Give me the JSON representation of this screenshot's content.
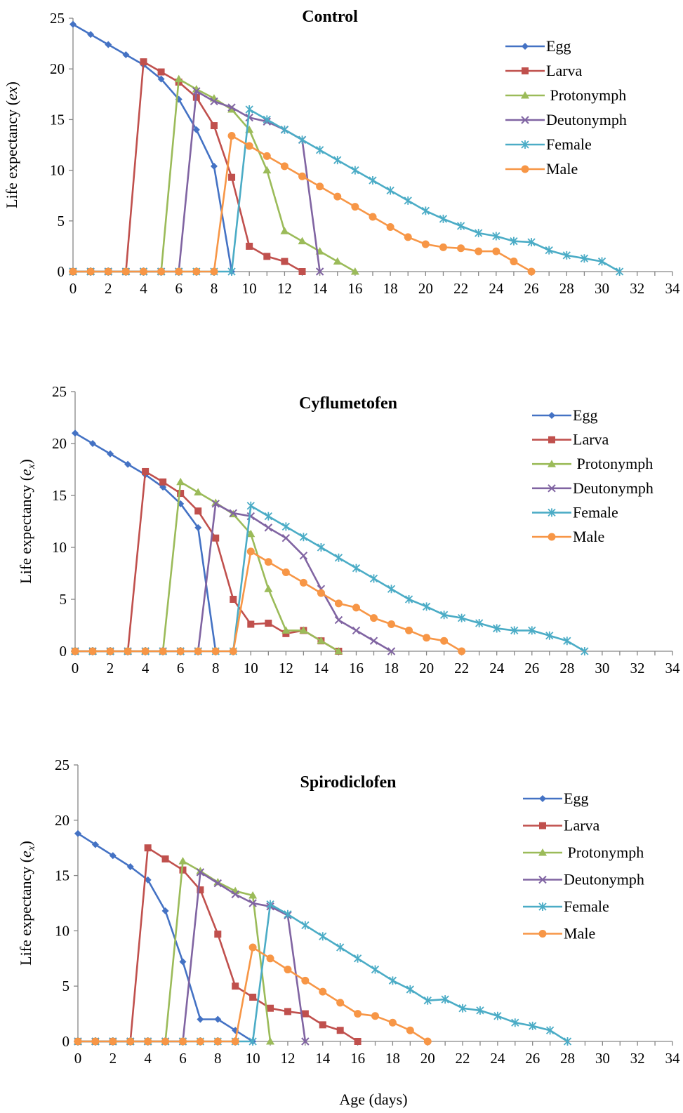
{
  "figure": {
    "xlabel": "Age (days)"
  },
  "chart_data": [
    {
      "type": "line",
      "title": "Control",
      "ylabel_main": "Life expectancy (",
      "ylabel_var": "ex",
      "ylabel_sub": "",
      "ylabel_end": ")",
      "xlim": [
        0,
        34
      ],
      "ylim": [
        0,
        25
      ],
      "xticks": [
        "0",
        "2",
        "4",
        "6",
        "8",
        "10",
        "12",
        "14",
        "16",
        "18",
        "20",
        "22",
        "24",
        "26",
        "28",
        "30",
        "32",
        "34"
      ],
      "yticks": [
        "0",
        "5",
        "10",
        "15",
        "20",
        "25"
      ],
      "series": [
        {
          "name": "Egg",
          "color": "#4472C4",
          "marker": "diamond",
          "x": [
            0,
            1,
            2,
            3,
            4,
            5,
            6,
            7,
            8,
            9
          ],
          "y": [
            24.4,
            23.4,
            22.4,
            21.4,
            20.4,
            19.0,
            17.0,
            14.0,
            10.4,
            0
          ]
        },
        {
          "name": "Larva",
          "color": "#C0504D",
          "marker": "square",
          "x": [
            0,
            1,
            2,
            3,
            4,
            5,
            6,
            7,
            8,
            9,
            10,
            11,
            12,
            13
          ],
          "y": [
            0,
            0,
            0,
            0,
            20.7,
            19.7,
            18.7,
            17.2,
            14.4,
            9.3,
            2.5,
            1.5,
            1.0,
            0
          ]
        },
        {
          "name": "Protonymph",
          "color": "#9BBB59",
          "marker": "triangle",
          "x": [
            0,
            1,
            2,
            3,
            4,
            5,
            6,
            7,
            8,
            9,
            10,
            11,
            12,
            13,
            14,
            15,
            16
          ],
          "y": [
            0,
            0,
            0,
            0,
            0,
            0,
            19.0,
            18.0,
            17.1,
            16.0,
            14.0,
            10.0,
            4.0,
            3.0,
            2.0,
            1.0,
            0
          ]
        },
        {
          "name": "Deutonymph",
          "color": "#8064A2",
          "marker": "x",
          "x": [
            0,
            1,
            2,
            3,
            4,
            5,
            6,
            7,
            8,
            9,
            10,
            11,
            12,
            13,
            14
          ],
          "y": [
            0,
            0,
            0,
            0,
            0,
            0,
            0,
            17.8,
            16.8,
            16.2,
            15.2,
            14.8,
            14.0,
            13.0,
            0
          ]
        },
        {
          "name": "Female",
          "color": "#4BACC6",
          "marker": "star",
          "x": [
            0,
            1,
            2,
            3,
            4,
            5,
            6,
            7,
            8,
            9,
            10,
            11,
            12,
            13,
            14,
            15,
            16,
            17,
            18,
            19,
            20,
            21,
            22,
            23,
            24,
            25,
            26,
            27,
            28,
            29,
            30,
            31
          ],
          "y": [
            0,
            0,
            0,
            0,
            0,
            0,
            0,
            0,
            0,
            0,
            16.0,
            15.0,
            14.0,
            13.0,
            12.0,
            11.0,
            10.0,
            9.0,
            8.0,
            7.0,
            6.0,
            5.2,
            4.5,
            3.8,
            3.5,
            3.0,
            2.9,
            2.1,
            1.6,
            1.3,
            1.0,
            0
          ]
        },
        {
          "name": "Male",
          "color": "#F79646",
          "marker": "circle",
          "x": [
            0,
            1,
            2,
            3,
            4,
            5,
            6,
            7,
            8,
            9,
            10,
            11,
            12,
            13,
            14,
            15,
            16,
            17,
            18,
            19,
            20,
            21,
            22,
            23,
            24,
            25,
            26
          ],
          "y": [
            0,
            0,
            0,
            0,
            0,
            0,
            0,
            0,
            0,
            13.4,
            12.4,
            11.4,
            10.4,
            9.4,
            8.4,
            7.4,
            6.4,
            5.4,
            4.4,
            3.4,
            2.7,
            2.4,
            2.3,
            2.0,
            2.0,
            1.0,
            0
          ]
        }
      ]
    },
    {
      "type": "line",
      "title": "Cyflumetofen",
      "ylabel_main": "Life expectancy (",
      "ylabel_var": "e",
      "ylabel_sub": "x",
      "ylabel_end": ")",
      "xlim": [
        0,
        34
      ],
      "ylim": [
        0,
        25
      ],
      "xticks": [
        "0",
        "2",
        "4",
        "6",
        "8",
        "10",
        "12",
        "14",
        "16",
        "18",
        "20",
        "22",
        "24",
        "26",
        "28",
        "30",
        "32",
        "34"
      ],
      "yticks": [
        "0",
        "5",
        "10",
        "15",
        "20",
        "25"
      ],
      "series": [
        {
          "name": "Egg",
          "color": "#4472C4",
          "marker": "diamond",
          "x": [
            0,
            1,
            2,
            3,
            4,
            5,
            6,
            7,
            8
          ],
          "y": [
            21.0,
            20.0,
            19.0,
            18.0,
            17.0,
            15.8,
            14.2,
            11.9,
            0
          ]
        },
        {
          "name": "Larva",
          "color": "#C0504D",
          "marker": "square",
          "x": [
            0,
            1,
            2,
            3,
            4,
            5,
            6,
            7,
            8,
            9,
            10,
            11,
            12,
            13,
            14,
            15
          ],
          "y": [
            0,
            0,
            0,
            0,
            17.3,
            16.3,
            15.2,
            13.5,
            10.9,
            5.0,
            2.6,
            2.7,
            1.7,
            2.0,
            1.0,
            0
          ]
        },
        {
          "name": "Protonymph",
          "color": "#9BBB59",
          "marker": "triangle",
          "x": [
            0,
            1,
            2,
            3,
            4,
            5,
            6,
            7,
            8,
            9,
            10,
            11,
            12,
            13,
            14,
            15
          ],
          "y": [
            0,
            0,
            0,
            0,
            0,
            0,
            16.3,
            15.3,
            14.3,
            13.2,
            11.3,
            6.0,
            2.0,
            2.0,
            1.0,
            0
          ]
        },
        {
          "name": "Deutonymph",
          "color": "#8064A2",
          "marker": "x",
          "x": [
            0,
            1,
            2,
            3,
            4,
            5,
            6,
            7,
            8,
            9,
            10,
            11,
            12,
            13,
            14,
            15,
            16,
            17,
            18
          ],
          "y": [
            0,
            0,
            0,
            0,
            0,
            0,
            0,
            0,
            14.2,
            13.3,
            13.0,
            11.9,
            10.9,
            9.2,
            6.0,
            3.0,
            2.0,
            1.0,
            0
          ]
        },
        {
          "name": "Female",
          "color": "#4BACC6",
          "marker": "star",
          "x": [
            0,
            1,
            2,
            3,
            4,
            5,
            6,
            7,
            8,
            9,
            10,
            11,
            12,
            13,
            14,
            15,
            16,
            17,
            18,
            19,
            20,
            21,
            22,
            23,
            24,
            25,
            26,
            27,
            28,
            29
          ],
          "y": [
            0,
            0,
            0,
            0,
            0,
            0,
            0,
            0,
            0,
            0,
            14.0,
            13.0,
            12.0,
            11.0,
            10.0,
            9.0,
            8.0,
            7.0,
            6.0,
            5.0,
            4.3,
            3.5,
            3.2,
            2.7,
            2.2,
            2.0,
            2.0,
            1.5,
            1.0,
            0
          ]
        },
        {
          "name": "Male",
          "color": "#F79646",
          "marker": "circle",
          "x": [
            0,
            1,
            2,
            3,
            4,
            5,
            6,
            7,
            8,
            9,
            10,
            11,
            12,
            13,
            14,
            15,
            16,
            17,
            18,
            19,
            20,
            21,
            22
          ],
          "y": [
            0,
            0,
            0,
            0,
            0,
            0,
            0,
            0,
            0,
            0,
            9.6,
            8.6,
            7.6,
            6.6,
            5.6,
            4.6,
            4.2,
            3.2,
            2.6,
            2.0,
            1.3,
            1.0,
            0
          ]
        }
      ]
    },
    {
      "type": "line",
      "title": "Spirodiclofen",
      "ylabel_main": "Life expectancy (",
      "ylabel_var": "e",
      "ylabel_sub": "x",
      "ylabel_end": ")",
      "xlim": [
        0,
        34
      ],
      "ylim": [
        0,
        25
      ],
      "xticks": [
        "0",
        "2",
        "4",
        "6",
        "8",
        "10",
        "12",
        "14",
        "16",
        "18",
        "20",
        "22",
        "24",
        "26",
        "28",
        "30",
        "32",
        "34"
      ],
      "yticks": [
        "0",
        "5",
        "10",
        "15",
        "20",
        "25"
      ],
      "series": [
        {
          "name": "Egg",
          "color": "#4472C4",
          "marker": "diamond",
          "x": [
            0,
            1,
            2,
            3,
            4,
            5,
            6,
            7,
            8,
            9,
            10
          ],
          "y": [
            18.8,
            17.8,
            16.8,
            15.8,
            14.6,
            11.8,
            7.2,
            2.0,
            2.0,
            1.0,
            0
          ]
        },
        {
          "name": "Larva",
          "color": "#C0504D",
          "marker": "square",
          "x": [
            0,
            1,
            2,
            3,
            4,
            5,
            6,
            7,
            8,
            9,
            10,
            11,
            12,
            13,
            14,
            15,
            16
          ],
          "y": [
            0,
            0,
            0,
            0,
            17.5,
            16.5,
            15.5,
            13.7,
            9.7,
            5.0,
            4.0,
            3.0,
            2.7,
            2.5,
            1.5,
            1.0,
            0
          ]
        },
        {
          "name": "Protonymph",
          "color": "#9BBB59",
          "marker": "triangle",
          "x": [
            0,
            1,
            2,
            3,
            4,
            5,
            6,
            7,
            8,
            9,
            10,
            11
          ],
          "y": [
            0,
            0,
            0,
            0,
            0,
            0,
            16.3,
            15.4,
            14.4,
            13.6,
            13.2,
            0
          ]
        },
        {
          "name": "Deutonymph",
          "color": "#8064A2",
          "marker": "x",
          "x": [
            0,
            1,
            2,
            3,
            4,
            5,
            6,
            7,
            8,
            9,
            10,
            11,
            12,
            13
          ],
          "y": [
            0,
            0,
            0,
            0,
            0,
            0,
            0,
            15.3,
            14.3,
            13.3,
            12.5,
            12.2,
            11.4,
            0
          ]
        },
        {
          "name": "Female",
          "color": "#4BACC6",
          "marker": "star",
          "x": [
            0,
            1,
            2,
            3,
            4,
            5,
            6,
            7,
            8,
            9,
            10,
            11,
            12,
            13,
            14,
            15,
            16,
            17,
            18,
            19,
            20,
            21,
            22,
            23,
            24,
            25,
            26,
            27,
            28
          ],
          "y": [
            0,
            0,
            0,
            0,
            0,
            0,
            0,
            0,
            0,
            0,
            0,
            12.4,
            11.5,
            10.5,
            9.5,
            8.5,
            7.5,
            6.5,
            5.5,
            4.7,
            3.7,
            3.8,
            3.0,
            2.8,
            2.3,
            1.7,
            1.4,
            1.0,
            0
          ]
        },
        {
          "name": "Male",
          "color": "#F79646",
          "marker": "circle",
          "x": [
            0,
            1,
            2,
            3,
            4,
            5,
            6,
            7,
            8,
            9,
            10,
            11,
            12,
            13,
            14,
            15,
            16,
            17,
            18,
            19,
            20
          ],
          "y": [
            0,
            0,
            0,
            0,
            0,
            0,
            0,
            0,
            0,
            0,
            8.5,
            7.5,
            6.5,
            5.5,
            4.5,
            3.5,
            2.5,
            2.3,
            1.7,
            1.0,
            0
          ]
        }
      ]
    }
  ]
}
